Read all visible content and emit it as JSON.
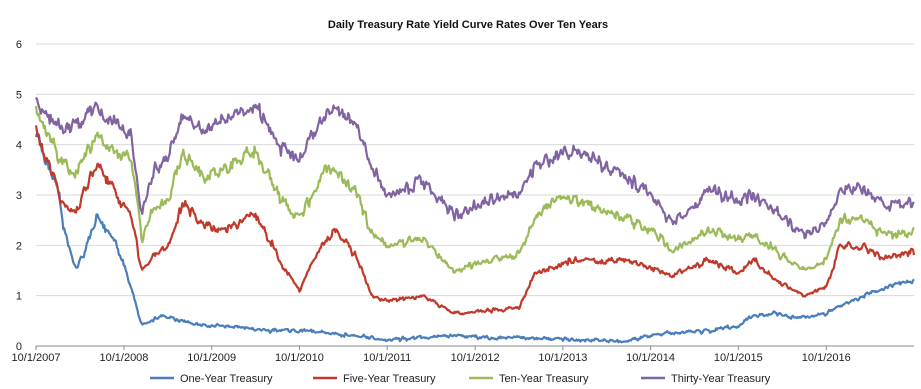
{
  "chart_data": {
    "type": "line",
    "title": "Daily Treasury Rate Yield Curve Rates Over Ten Years",
    "xlabel": "",
    "ylabel": "",
    "ylim": [
      0,
      6
    ],
    "yticks": [
      0,
      1,
      2,
      3,
      4,
      5,
      6
    ],
    "xlim": [
      "2007-10-01",
      "2017-10-01"
    ],
    "xticks": [
      "10/1/2007",
      "10/1/2008",
      "10/1/2009",
      "10/1/2010",
      "10/1/2011",
      "10/1/2012",
      "10/1/2013",
      "10/1/2014",
      "10/1/2015",
      "10/1/2016"
    ],
    "grid": {
      "horizontal": true,
      "vertical": false
    },
    "legend_position": "bottom",
    "series": [
      {
        "name": "One-Year Treasury",
        "color": "#4a7ebb",
        "points": [
          [
            "2007-10-01",
            4.3
          ],
          [
            "2007-11-15",
            3.6
          ],
          [
            "2008-01-01",
            3.2
          ],
          [
            "2008-01-20",
            2.4
          ],
          [
            "2008-02-15",
            2.0
          ],
          [
            "2008-03-15",
            1.5
          ],
          [
            "2008-04-15",
            1.8
          ],
          [
            "2008-05-15",
            2.2
          ],
          [
            "2008-06-15",
            2.6
          ],
          [
            "2008-07-15",
            2.3
          ],
          [
            "2008-08-15",
            2.2
          ],
          [
            "2008-09-15",
            1.8
          ],
          [
            "2008-10-15",
            1.4
          ],
          [
            "2008-11-15",
            0.9
          ],
          [
            "2008-12-15",
            0.4
          ],
          [
            "2009-03-01",
            0.6
          ],
          [
            "2009-06-01",
            0.5
          ],
          [
            "2009-09-01",
            0.4
          ],
          [
            "2009-12-01",
            0.4
          ],
          [
            "2010-06-01",
            0.3
          ],
          [
            "2010-12-01",
            0.3
          ],
          [
            "2011-06-01",
            0.2
          ],
          [
            "2011-10-01",
            0.12
          ],
          [
            "2012-06-01",
            0.2
          ],
          [
            "2012-12-01",
            0.17
          ],
          [
            "2013-06-01",
            0.15
          ],
          [
            "2013-12-01",
            0.13
          ],
          [
            "2014-06-01",
            0.1
          ],
          [
            "2014-12-01",
            0.25
          ],
          [
            "2015-06-01",
            0.3
          ],
          [
            "2015-10-01",
            0.4
          ],
          [
            "2015-12-01",
            0.6
          ],
          [
            "2016-03-01",
            0.65
          ],
          [
            "2016-06-01",
            0.55
          ],
          [
            "2016-10-01",
            0.65
          ],
          [
            "2017-01-01",
            0.85
          ],
          [
            "2017-04-01",
            1.05
          ],
          [
            "2017-07-01",
            1.2
          ],
          [
            "2017-10-01",
            1.3
          ]
        ]
      },
      {
        "name": "Five-Year Treasury",
        "color": "#c0392b",
        "points": [
          [
            "2007-10-01",
            4.3
          ],
          [
            "2007-12-01",
            3.5
          ],
          [
            "2008-01-20",
            2.8
          ],
          [
            "2008-03-15",
            2.6
          ],
          [
            "2008-05-01",
            3.2
          ],
          [
            "2008-06-15",
            3.6
          ],
          [
            "2008-08-01",
            3.3
          ],
          [
            "2008-09-15",
            2.9
          ],
          [
            "2008-11-01",
            2.6
          ],
          [
            "2008-12-15",
            1.5
          ],
          [
            "2009-02-01",
            1.8
          ],
          [
            "2009-04-01",
            2.0
          ],
          [
            "2009-06-01",
            2.8
          ],
          [
            "2009-09-01",
            2.4
          ],
          [
            "2009-12-01",
            2.3
          ],
          [
            "2010-04-01",
            2.6
          ],
          [
            "2010-07-01",
            1.8
          ],
          [
            "2010-10-01",
            1.1
          ],
          [
            "2011-01-01",
            2.0
          ],
          [
            "2011-03-01",
            2.3
          ],
          [
            "2011-06-01",
            1.7
          ],
          [
            "2011-08-01",
            1.0
          ],
          [
            "2011-10-01",
            0.9
          ],
          [
            "2012-03-01",
            1.0
          ],
          [
            "2012-07-01",
            0.65
          ],
          [
            "2012-12-01",
            0.7
          ],
          [
            "2013-04-01",
            0.75
          ],
          [
            "2013-06-01",
            1.4
          ],
          [
            "2013-09-01",
            1.6
          ],
          [
            "2013-12-01",
            1.7
          ],
          [
            "2014-06-01",
            1.7
          ],
          [
            "2014-10-01",
            1.55
          ],
          [
            "2015-01-01",
            1.4
          ],
          [
            "2015-06-01",
            1.7
          ],
          [
            "2015-10-01",
            1.45
          ],
          [
            "2015-12-01",
            1.7
          ],
          [
            "2016-03-01",
            1.3
          ],
          [
            "2016-07-01",
            1.0
          ],
          [
            "2016-10-01",
            1.2
          ],
          [
            "2016-12-01",
            2.0
          ],
          [
            "2017-03-01",
            1.95
          ],
          [
            "2017-06-01",
            1.75
          ],
          [
            "2017-10-01",
            1.9
          ]
        ]
      },
      {
        "name": "Ten-Year Treasury",
        "color": "#9bbb59",
        "points": [
          [
            "2007-10-01",
            4.6
          ],
          [
            "2007-12-01",
            4.1
          ],
          [
            "2008-01-20",
            3.6
          ],
          [
            "2008-03-15",
            3.5
          ],
          [
            "2008-05-01",
            3.9
          ],
          [
            "2008-06-15",
            4.1
          ],
          [
            "2008-08-01",
            3.9
          ],
          [
            "2008-09-15",
            3.8
          ],
          [
            "2008-11-01",
            3.7
          ],
          [
            "2008-12-15",
            2.1
          ],
          [
            "2009-02-01",
            2.8
          ],
          [
            "2009-04-01",
            2.9
          ],
          [
            "2009-06-01",
            3.8
          ],
          [
            "2009-09-01",
            3.4
          ],
          [
            "2009-12-01",
            3.5
          ],
          [
            "2010-04-01",
            3.9
          ],
          [
            "2010-07-01",
            3.0
          ],
          [
            "2010-10-01",
            2.5
          ],
          [
            "2011-01-01",
            3.4
          ],
          [
            "2011-03-01",
            3.5
          ],
          [
            "2011-06-01",
            3.0
          ],
          [
            "2011-08-01",
            2.2
          ],
          [
            "2011-10-01",
            2.0
          ],
          [
            "2012-03-01",
            2.1
          ],
          [
            "2012-07-01",
            1.5
          ],
          [
            "2012-12-01",
            1.7
          ],
          [
            "2013-04-01",
            1.8
          ],
          [
            "2013-06-01",
            2.5
          ],
          [
            "2013-09-01",
            2.9
          ],
          [
            "2013-12-01",
            2.9
          ],
          [
            "2014-06-01",
            2.6
          ],
          [
            "2014-10-01",
            2.3
          ],
          [
            "2015-01-01",
            1.9
          ],
          [
            "2015-06-01",
            2.3
          ],
          [
            "2015-10-01",
            2.1
          ],
          [
            "2015-12-01",
            2.2
          ],
          [
            "2016-03-01",
            1.9
          ],
          [
            "2016-07-01",
            1.5
          ],
          [
            "2016-10-01",
            1.7
          ],
          [
            "2016-12-01",
            2.5
          ],
          [
            "2017-03-01",
            2.5
          ],
          [
            "2017-06-01",
            2.2
          ],
          [
            "2017-10-01",
            2.3
          ]
        ]
      },
      {
        "name": "Thirty-Year Treasury",
        "color": "#8064a2",
        "points": [
          [
            "2007-10-01",
            4.85
          ],
          [
            "2007-12-01",
            4.5
          ],
          [
            "2008-01-20",
            4.3
          ],
          [
            "2008-03-15",
            4.4
          ],
          [
            "2008-05-01",
            4.6
          ],
          [
            "2008-06-15",
            4.7
          ],
          [
            "2008-08-01",
            4.5
          ],
          [
            "2008-09-15",
            4.3
          ],
          [
            "2008-11-01",
            4.2
          ],
          [
            "2008-12-15",
            2.6
          ],
          [
            "2009-02-01",
            3.5
          ],
          [
            "2009-04-01",
            3.7
          ],
          [
            "2009-06-01",
            4.6
          ],
          [
            "2009-09-01",
            4.2
          ],
          [
            "2009-12-01",
            4.5
          ],
          [
            "2010-04-01",
            4.8
          ],
          [
            "2010-07-01",
            4.0
          ],
          [
            "2010-10-01",
            3.7
          ],
          [
            "2011-01-01",
            4.5
          ],
          [
            "2011-03-01",
            4.7
          ],
          [
            "2011-06-01",
            4.3
          ],
          [
            "2011-08-01",
            3.5
          ],
          [
            "2011-10-01",
            3.0
          ],
          [
            "2012-03-01",
            3.3
          ],
          [
            "2012-07-01",
            2.6
          ],
          [
            "2012-12-01",
            2.9
          ],
          [
            "2013-04-01",
            3.0
          ],
          [
            "2013-06-01",
            3.5
          ],
          [
            "2013-09-01",
            3.8
          ],
          [
            "2013-12-01",
            3.9
          ],
          [
            "2014-06-01",
            3.4
          ],
          [
            "2014-10-01",
            3.0
          ],
          [
            "2015-01-01",
            2.4
          ],
          [
            "2015-06-01",
            3.1
          ],
          [
            "2015-10-01",
            2.9
          ],
          [
            "2015-12-01",
            3.0
          ],
          [
            "2016-03-01",
            2.7
          ],
          [
            "2016-07-01",
            2.2
          ],
          [
            "2016-10-01",
            2.4
          ],
          [
            "2016-12-01",
            3.1
          ],
          [
            "2017-03-01",
            3.1
          ],
          [
            "2017-06-01",
            2.8
          ],
          [
            "2017-10-01",
            2.85
          ]
        ]
      }
    ]
  }
}
